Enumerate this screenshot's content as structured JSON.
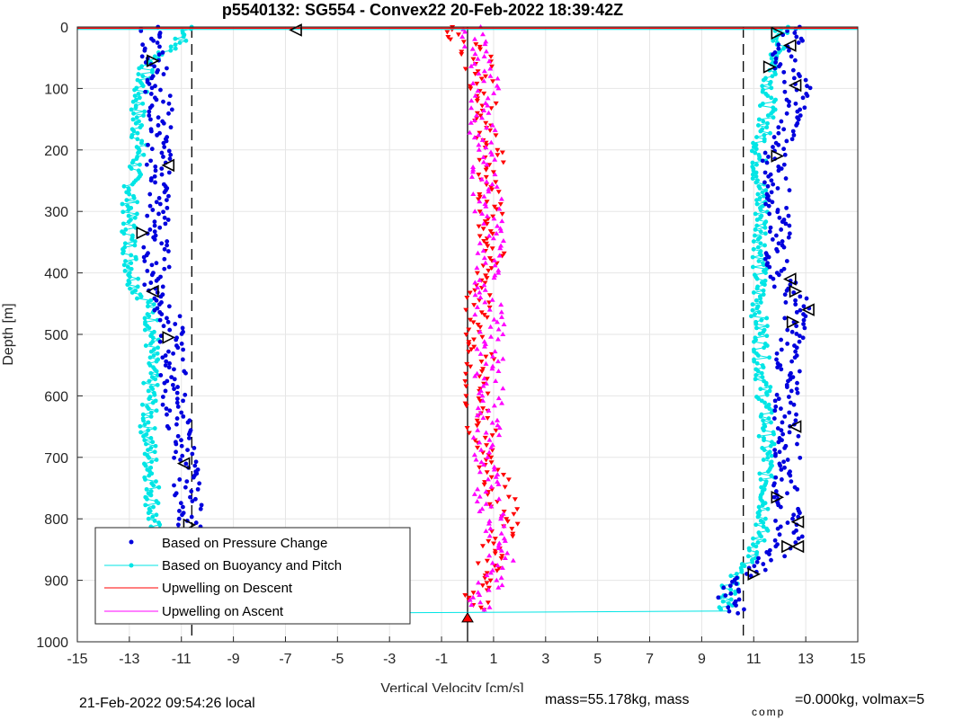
{
  "chart_data": {
    "type": "scatter",
    "title": "p5540132: SG554 - Convex22 20-Feb-2022 18:39:42Z",
    "xlabel": "Vertical Velocity [cm/s]",
    "ylabel": "Depth [m]",
    "xlim": [
      -15,
      15
    ],
    "ylim": [
      0,
      1000
    ],
    "y_reversed": true,
    "grid": true,
    "xticks": [
      -15,
      -13,
      -11,
      -9,
      -7,
      -5,
      -3,
      -1,
      1,
      3,
      5,
      7,
      9,
      11,
      13,
      15
    ],
    "yticks": [
      0,
      100,
      200,
      300,
      400,
      500,
      600,
      700,
      800,
      900,
      1000
    ],
    "xtick_labels": [
      "-15",
      "-13",
      "-11",
      "-9",
      "-7",
      "-5",
      "-3",
      "-1",
      "1",
      "3",
      "5",
      "7",
      "9",
      "11",
      "13",
      "15"
    ],
    "ytick_labels": [
      "0",
      "100",
      "200",
      "300",
      "400",
      "500",
      "600",
      "700",
      "800",
      "900",
      "1000"
    ],
    "legend_position": "bottom-left",
    "vertical_lines": [
      {
        "x": -10.6,
        "style": "dashed",
        "color": "#000000"
      },
      {
        "x": 10.6,
        "style": "dashed",
        "color": "#000000"
      },
      {
        "x": 0,
        "style": "solid",
        "color": "#000000"
      }
    ],
    "series": [
      {
        "name": "Based on Pressure Change",
        "color": "#0000dd",
        "marker": "dot",
        "profile_descent": [
          [
            0,
            -12.2
          ],
          [
            50,
            -12.0
          ],
          [
            100,
            -11.9
          ],
          [
            150,
            -11.8
          ],
          [
            200,
            -11.9
          ],
          [
            250,
            -11.8
          ],
          [
            300,
            -11.9
          ],
          [
            350,
            -12.0
          ],
          [
            400,
            -11.9
          ],
          [
            430,
            -12.0
          ],
          [
            450,
            -11.6
          ],
          [
            500,
            -11.4
          ],
          [
            550,
            -11.3
          ],
          [
            600,
            -11.3
          ],
          [
            650,
            -11.1
          ],
          [
            700,
            -10.8
          ],
          [
            750,
            -10.8
          ],
          [
            800,
            -10.6
          ],
          [
            850,
            -10.8
          ],
          [
            900,
            -11.0
          ],
          [
            940,
            -11.8
          ],
          [
            955,
            -12.2
          ]
        ],
        "profile_ascent": [
          [
            955,
            10.2
          ],
          [
            930,
            10.1
          ],
          [
            900,
            10.4
          ],
          [
            870,
            11.5
          ],
          [
            850,
            12.1
          ],
          [
            830,
            12.4
          ],
          [
            800,
            12.3
          ],
          [
            750,
            12.2
          ],
          [
            700,
            12.3
          ],
          [
            650,
            12.3
          ],
          [
            600,
            12.2
          ],
          [
            550,
            12.3
          ],
          [
            500,
            12.5
          ],
          [
            470,
            12.7
          ],
          [
            440,
            12.6
          ],
          [
            400,
            11.9
          ],
          [
            350,
            11.9
          ],
          [
            300,
            11.9
          ],
          [
            250,
            11.9
          ],
          [
            200,
            11.8
          ],
          [
            150,
            12.5
          ],
          [
            100,
            12.7
          ],
          [
            50,
            12.1
          ],
          [
            20,
            12.5
          ],
          [
            0,
            12.8
          ]
        ]
      },
      {
        "name": "Based on Buoyancy and Pitch",
        "color": "#00e5e5",
        "marker": "dot-line",
        "profile_descent": [
          [
            0,
            -10.6
          ],
          [
            30,
            -11.2
          ],
          [
            60,
            -12.3
          ],
          [
            100,
            -12.6
          ],
          [
            150,
            -12.7
          ],
          [
            200,
            -12.6
          ],
          [
            250,
            -12.9
          ],
          [
            300,
            -13.0
          ],
          [
            350,
            -13.0
          ],
          [
            400,
            -12.9
          ],
          [
            430,
            -12.7
          ],
          [
            450,
            -12.2
          ],
          [
            500,
            -12.1
          ],
          [
            550,
            -12.2
          ],
          [
            600,
            -12.2
          ],
          [
            650,
            -12.3
          ],
          [
            700,
            -12.2
          ],
          [
            750,
            -12.1
          ],
          [
            800,
            -12.1
          ],
          [
            850,
            -12.1
          ],
          [
            900,
            -12.2
          ],
          [
            950,
            -12.4
          ]
        ],
        "profile_ascent": [
          [
            950,
            9.9
          ],
          [
            920,
            10.0
          ],
          [
            890,
            10.2
          ],
          [
            860,
            11.0
          ],
          [
            830,
            11.2
          ],
          [
            800,
            11.4
          ],
          [
            750,
            11.5
          ],
          [
            700,
            11.5
          ],
          [
            650,
            11.5
          ],
          [
            600,
            11.4
          ],
          [
            550,
            11.3
          ],
          [
            500,
            11.3
          ],
          [
            470,
            11.2
          ],
          [
            440,
            11.2
          ],
          [
            400,
            11.2
          ],
          [
            350,
            11.3
          ],
          [
            300,
            11.3
          ],
          [
            250,
            11.2
          ],
          [
            200,
            11.2
          ],
          [
            150,
            11.5
          ],
          [
            100,
            11.6
          ],
          [
            50,
            11.9
          ],
          [
            0,
            12.1
          ]
        ]
      },
      {
        "name": "Upwelling on Descent",
        "color": "#ff0000",
        "marker": "triangle-down",
        "profile": [
          [
            0,
            -0.5
          ],
          [
            50,
            0.4
          ],
          [
            100,
            0.6
          ],
          [
            150,
            0.7
          ],
          [
            200,
            0.8
          ],
          [
            250,
            0.9
          ],
          [
            300,
            0.8
          ],
          [
            350,
            0.9
          ],
          [
            400,
            0.8
          ],
          [
            450,
            0.3
          ],
          [
            500,
            0.4
          ],
          [
            550,
            0.5
          ],
          [
            600,
            0.3
          ],
          [
            650,
            0.5
          ],
          [
            700,
            0.9
          ],
          [
            750,
            1.2
          ],
          [
            800,
            1.5
          ],
          [
            850,
            1.0
          ],
          [
            900,
            0.6
          ],
          [
            950,
            0.3
          ]
        ]
      },
      {
        "name": "Upwelling on Ascent",
        "color": "#ff00ff",
        "marker": "triangle-up",
        "profile": [
          [
            0,
            0.2
          ],
          [
            50,
            0.5
          ],
          [
            100,
            0.7
          ],
          [
            150,
            0.6
          ],
          [
            200,
            0.6
          ],
          [
            250,
            0.7
          ],
          [
            300,
            0.8
          ],
          [
            350,
            0.9
          ],
          [
            400,
            0.7
          ],
          [
            450,
            0.8
          ],
          [
            500,
            0.9
          ],
          [
            550,
            0.8
          ],
          [
            600,
            0.9
          ],
          [
            650,
            0.8
          ],
          [
            700,
            0.6
          ],
          [
            750,
            0.7
          ],
          [
            800,
            1.1
          ],
          [
            850,
            1.4
          ],
          [
            900,
            0.9
          ],
          [
            950,
            0.4
          ]
        ]
      }
    ],
    "triangle_markers": [
      {
        "x": 11.9,
        "y": 10
      },
      {
        "x": 12.4,
        "y": 30
      },
      {
        "x": 11.6,
        "y": 65
      },
      {
        "x": 12.6,
        "y": 95
      },
      {
        "x": 11.9,
        "y": 210
      },
      {
        "x": 12.4,
        "y": 410
      },
      {
        "x": 12.6,
        "y": 430
      },
      {
        "x": 13.1,
        "y": 460
      },
      {
        "x": 12.5,
        "y": 480
      },
      {
        "x": 12.6,
        "y": 650
      },
      {
        "x": 11.9,
        "y": 765
      },
      {
        "x": 12.7,
        "y": 805
      },
      {
        "x": 12.3,
        "y": 845
      },
      {
        "x": 12.7,
        "y": 845
      },
      {
        "x": 11.0,
        "y": 890
      },
      {
        "x": -6.6,
        "y": 5
      },
      {
        "x": -12.1,
        "y": 55
      },
      {
        "x": -11.5,
        "y": 225
      },
      {
        "x": -12.5,
        "y": 335
      },
      {
        "x": -12.1,
        "y": 430
      },
      {
        "x": -11.5,
        "y": 505
      },
      {
        "x": -10.9,
        "y": 710
      },
      {
        "x": -10.7,
        "y": 810
      },
      {
        "x": -11.0,
        "y": 880
      },
      {
        "x": -12.1,
        "y": 955
      }
    ]
  },
  "footer": {
    "local_time": "21-Feb-2022 09:54:26 local",
    "mass_text": "mass=55.178kg, mass",
    "mass_sub": "comp",
    "mass_rest": "=0.000kg, volmax=5"
  }
}
